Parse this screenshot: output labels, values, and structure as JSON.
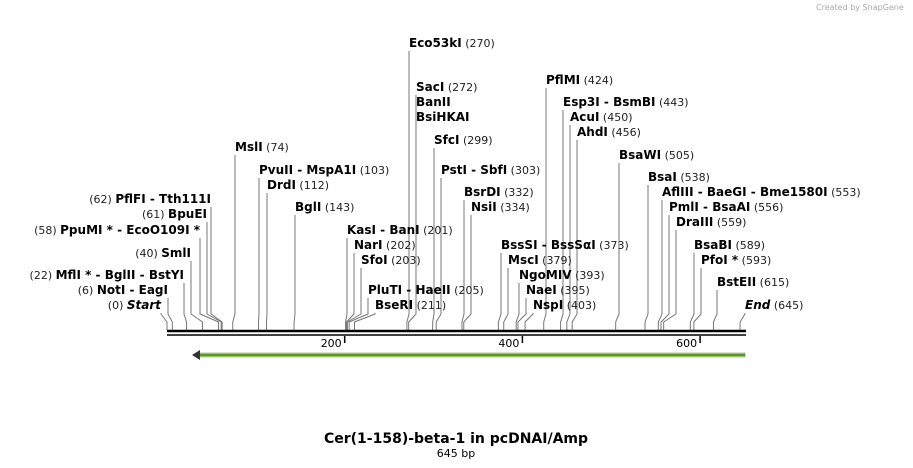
{
  "credit": "Created by SnapGene",
  "title": "Cer(1-158)-beta-1 in pcDNAI/Amp",
  "length_label": "645 bp",
  "length": 645,
  "ruler_ticks": [
    "200",
    "400",
    "600"
  ],
  "feature_color": "#9be05a",
  "sites": [
    {
      "name": "Start",
      "pos": 0,
      "label": "(0)"
    },
    {
      "name": "NotI  - EagI",
      "pos": 6,
      "label": "(6)"
    },
    {
      "name": "MflI * - BglII  - BstYI",
      "pos": 22,
      "label": "(22)"
    },
    {
      "name": "SmlI",
      "pos": 40,
      "label": "(40)"
    },
    {
      "name": "PpuMI *  - EcoO109I *",
      "pos": 58,
      "label": "(58)"
    },
    {
      "name": "BpuEI",
      "pos": 61,
      "label": "(61)"
    },
    {
      "name": "PflFI  - Tth111I",
      "pos": 62,
      "label": "(62)"
    },
    {
      "name": "MslI",
      "pos": 74,
      "label": "(74)"
    },
    {
      "name": "PvuII  - MspA1I",
      "pos": 103,
      "label": "(103)"
    },
    {
      "name": "DrdI",
      "pos": 112,
      "label": "(112)"
    },
    {
      "name": "BglI",
      "pos": 143,
      "label": "(143)"
    },
    {
      "name": "KasI  - BanI",
      "pos": 201,
      "label": "(201)"
    },
    {
      "name": "NarI",
      "pos": 202,
      "label": "(202)"
    },
    {
      "name": "SfoI",
      "pos": 203,
      "label": "(203)"
    },
    {
      "name": "PluTI  - HaeII",
      "pos": 205,
      "label": "(205)"
    },
    {
      "name": "BseRI",
      "pos": 211,
      "label": "(211)"
    },
    {
      "name": "Eco53kI",
      "pos": 270,
      "label": "(270)"
    },
    {
      "name": "SacI",
      "pos": 272,
      "label": "(272)"
    },
    {
      "name": "BanII",
      "pos": 272,
      "label": ""
    },
    {
      "name": "BsiHKAI",
      "pos": 272,
      "label": ""
    },
    {
      "name": "SfcI",
      "pos": 299,
      "label": "(299)"
    },
    {
      "name": "PstI  - SbfI",
      "pos": 303,
      "label": "(303)"
    },
    {
      "name": "BsrDI",
      "pos": 332,
      "label": "(332)"
    },
    {
      "name": "NsiI",
      "pos": 334,
      "label": "(334)"
    },
    {
      "name": "BssSI  - BssSαI",
      "pos": 373,
      "label": "(373)"
    },
    {
      "name": "MscI",
      "pos": 379,
      "label": "(379)"
    },
    {
      "name": "NgoMIV",
      "pos": 393,
      "label": "(393)"
    },
    {
      "name": "NaeI",
      "pos": 395,
      "label": "(395)"
    },
    {
      "name": "NspI",
      "pos": 403,
      "label": "(403)"
    },
    {
      "name": "PflMI",
      "pos": 424,
      "label": "(424)"
    },
    {
      "name": "Esp3I  - BsmBI",
      "pos": 443,
      "label": "(443)"
    },
    {
      "name": "AcuI",
      "pos": 450,
      "label": "(450)"
    },
    {
      "name": "AhdI",
      "pos": 456,
      "label": "(456)"
    },
    {
      "name": "BsaWI",
      "pos": 505,
      "label": "(505)"
    },
    {
      "name": "BsaI",
      "pos": 538,
      "label": "(538)"
    },
    {
      "name": "AflIII  - BaeGI  - Bme1580I",
      "pos": 553,
      "label": "(553)"
    },
    {
      "name": "PmlI  - BsaAI",
      "pos": 556,
      "label": "(556)"
    },
    {
      "name": "DraIII",
      "pos": 559,
      "label": "(559)"
    },
    {
      "name": "BsaBI",
      "pos": 589,
      "label": "(589)"
    },
    {
      "name": "PfoI *",
      "pos": 593,
      "label": "(593)"
    },
    {
      "name": "BstEII",
      "pos": 615,
      "label": "(615)"
    },
    {
      "name": "End",
      "pos": 645,
      "label": "(645)"
    }
  ]
}
